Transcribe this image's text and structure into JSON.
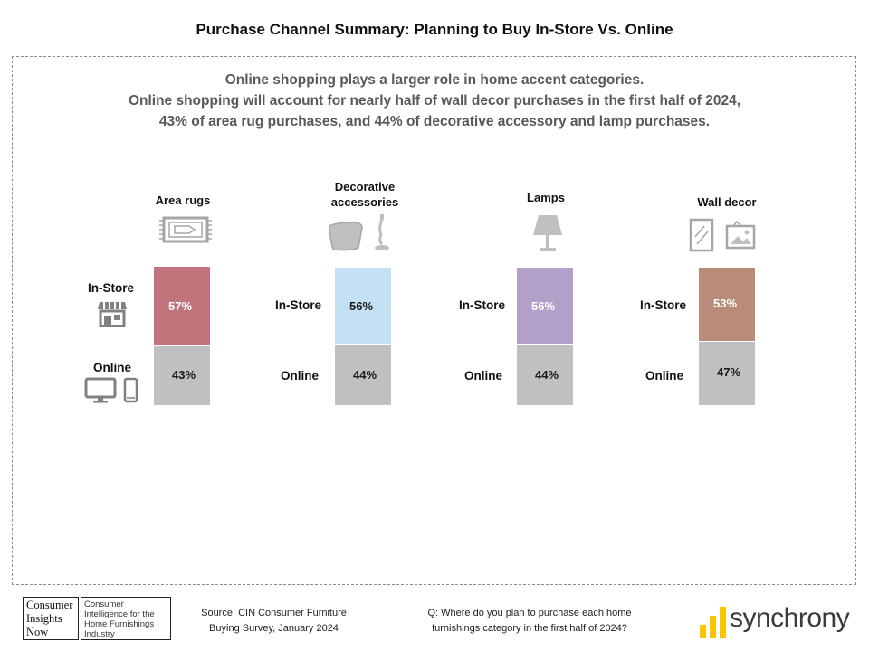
{
  "title": "Purchase Channel Summary: Planning to Buy In-Store Vs. Online",
  "subtitle": [
    "Online shopping plays a larger role in home accent categories.",
    "Online shopping will account for nearly half of wall decor purchases in the first half of 2024,",
    "43% of area rug purchases, and 44% of decorative accessory and lamp purchases."
  ],
  "chart_data": {
    "type": "bar",
    "stacked": true,
    "categories": [
      "Area rugs",
      "Decorative accessories",
      "Lamps",
      "Wall decor"
    ],
    "series": [
      {
        "name": "In-Store",
        "values": [
          57,
          56,
          56,
          53
        ],
        "labels": [
          "57%",
          "56%",
          "56%",
          "53%"
        ]
      },
      {
        "name": "Online",
        "values": [
          43,
          44,
          44,
          47
        ],
        "labels": [
          "43%",
          "44%",
          "44%",
          "47%"
        ]
      }
    ],
    "colors": {
      "in_store": [
        "#c0737b",
        "#c4e0f3",
        "#b3a0c9",
        "#b98b78"
      ],
      "online": "#c0c0c0"
    },
    "pct_label_colors": [
      "#ffffff",
      "#1a1a1a",
      "#ffffff",
      "#ffffff"
    ],
    "icons": [
      "rug-icon",
      "pillow-lamp-icon",
      "lamp-icon",
      "mirror-picture-icon"
    ]
  },
  "channel_labels": {
    "in_store": "In-Store",
    "online": "Online"
  },
  "channel_icons": {
    "in_store": "storefront-icon",
    "online": "monitor-phone-icon"
  },
  "footer": {
    "logo_lines": [
      "Consumer",
      "Insights",
      "Now"
    ],
    "logo_tagline": "Consumer Intelligence for the Home Furnishings Industry",
    "source_lines": [
      "Source: CIN Consumer Furniture",
      "Buying Survey, January 2024"
    ],
    "question_lines": [
      "Q: Where do you plan to purchase each home",
      "furnishings category in the first half of 2024?"
    ],
    "brand": "synchrony",
    "brand_color": "#fbc600"
  }
}
